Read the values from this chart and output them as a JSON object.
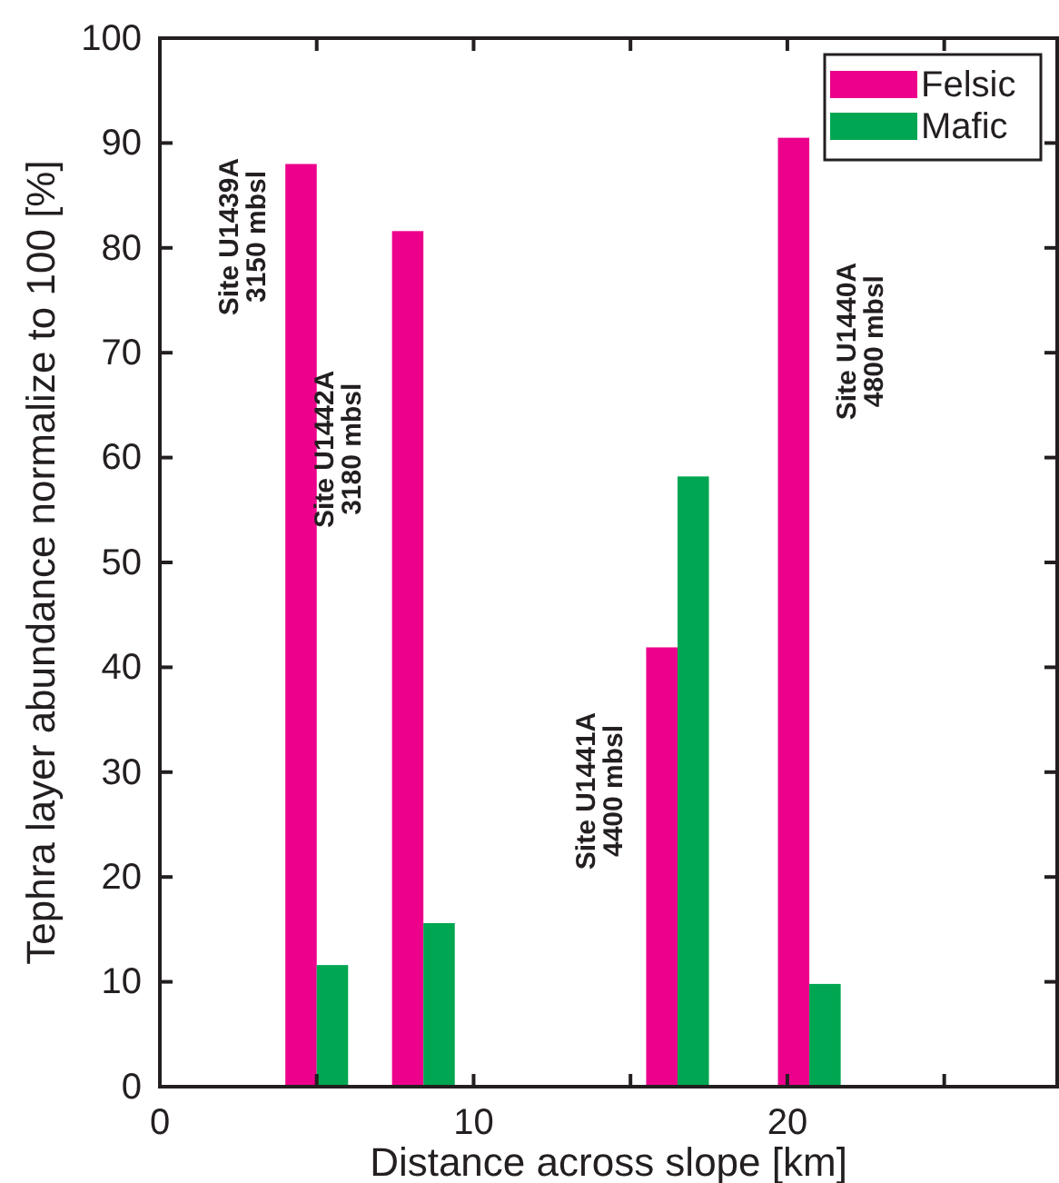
{
  "chart_data": {
    "type": "bar",
    "xlabel": "Distance across slope [km]",
    "ylabel": "Tephra layer abundance normalize to 100  [%]",
    "x": [
      5,
      8.4,
      16.5,
      20.7
    ],
    "series": [
      {
        "name": "Felsic",
        "color": "#ec008c",
        "values": [
          88.0,
          81.6,
          41.9,
          90.5
        ]
      },
      {
        "name": "Mafic",
        "color": "#00a651",
        "values": [
          11.6,
          15.6,
          58.2,
          9.8
        ]
      }
    ],
    "xlim": [
      0,
      28.6
    ],
    "xticks": [
      0,
      {
        "value": 5,
        "label": null
      },
      10,
      {
        "value": 15,
        "label": null
      },
      20,
      {
        "value": 25,
        "label": null
      }
    ],
    "ylim": [
      0,
      100
    ],
    "yticks": [
      0,
      10,
      20,
      30,
      40,
      50,
      60,
      70,
      80,
      90,
      100
    ],
    "legend": "top right",
    "annotations": [
      "Site U1439A\n3150 mbsl",
      "Site U1442A\n3180 mbsl",
      "Site U1441A\n4400 mbsl",
      "Site U1440A\n4800 mbsl"
    ]
  }
}
